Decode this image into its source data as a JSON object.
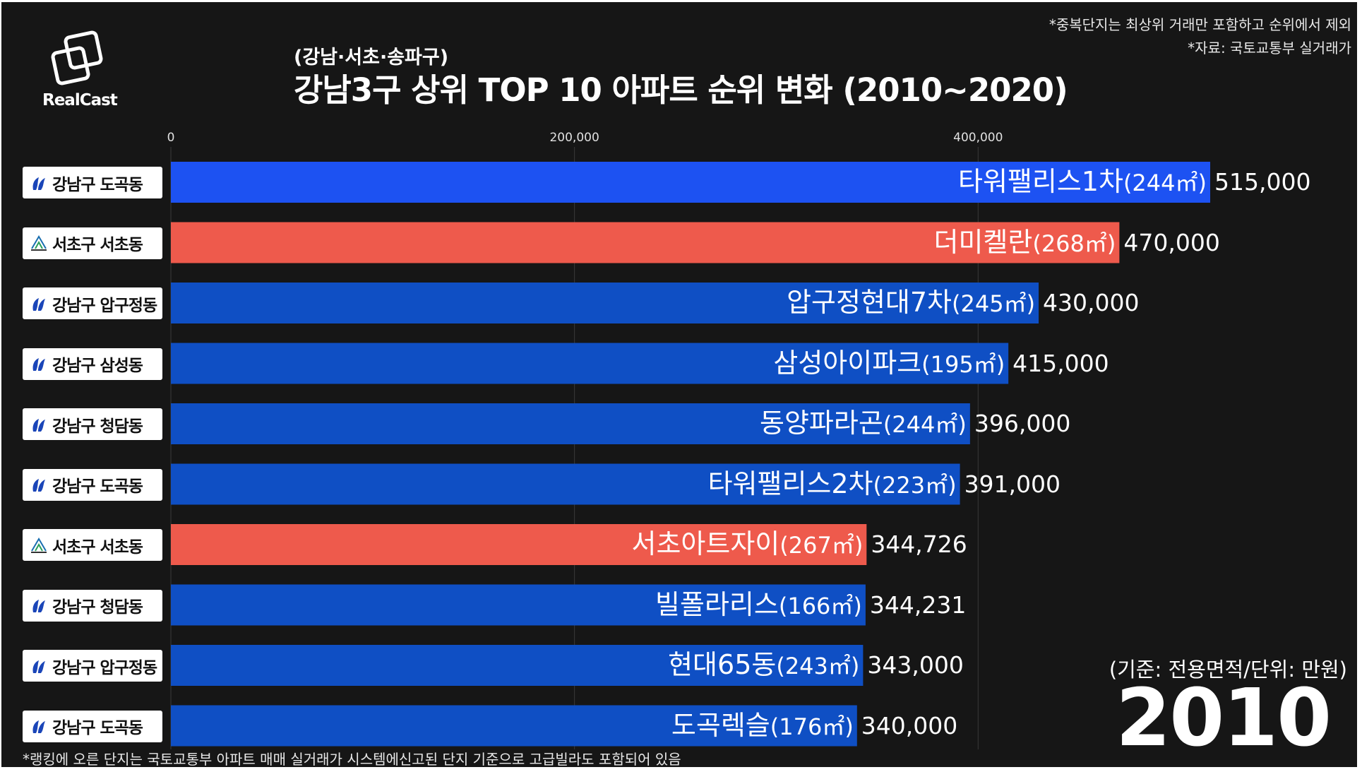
{
  "header": {
    "brand": "RealCast",
    "subtitle": "(강남·서초·송파구)",
    "title": "강남3구 상위 TOP 10 아파트 순위 변화 (2010~2020)",
    "note_duplicate": "*중복단지는 최상위 거래만 포함하고 순위에서 제외",
    "note_source": "*자료: 국토교통부 실거래가"
  },
  "footer": {
    "footnote": "*랭킹에 오른 단지는 국토교통부 아파트 매매 실거래가 시스템에신고된 단지 기준으로 고급빌라도 포함되어 있음",
    "unit_note": "(기준: 전용면적/단위: 만원)",
    "year": "2010"
  },
  "colors": {
    "gangnam_bar": "#0f4fc4",
    "gangnam_top_bar": "#1d52f2",
    "seocho_bar": "#ee5a4c",
    "background": "#161616"
  },
  "chart_data": {
    "type": "bar",
    "orientation": "horizontal",
    "title": "강남3구 상위 TOP 10 아파트 순위 변화 (2010~2020)",
    "xlim": [
      0,
      515000
    ],
    "ticks": [
      {
        "value": 0,
        "label": "0"
      },
      {
        "value": 200000,
        "label": "200,000"
      },
      {
        "value": 400000,
        "label": "400,000"
      }
    ],
    "grid": true,
    "bars": [
      {
        "district": "강남구 도곡동",
        "gu": "gangnam",
        "name": "타워팰리스1차",
        "area": "(244㎡)",
        "value": 515000,
        "value_label": "515,000"
      },
      {
        "district": "서초구 서초동",
        "gu": "seocho",
        "name": "더미켈란",
        "area": "(268㎡)",
        "value": 470000,
        "value_label": "470,000"
      },
      {
        "district": "강남구 압구정동",
        "gu": "gangnam",
        "name": "압구정현대7차",
        "area": "(245㎡)",
        "value": 430000,
        "value_label": "430,000"
      },
      {
        "district": "강남구 삼성동",
        "gu": "gangnam",
        "name": "삼성아이파크",
        "area": "(195㎡)",
        "value": 415000,
        "value_label": "415,000"
      },
      {
        "district": "강남구 청담동",
        "gu": "gangnam",
        "name": "동양파라곤",
        "area": "(244㎡)",
        "value": 396000,
        "value_label": "396,000"
      },
      {
        "district": "강남구 도곡동",
        "gu": "gangnam",
        "name": "타워팰리스2차",
        "area": "(223㎡)",
        "value": 391000,
        "value_label": "391,000"
      },
      {
        "district": "서초구 서초동",
        "gu": "seocho",
        "name": "서초아트자이",
        "area": "(267㎡)",
        "value": 344726,
        "value_label": "344,726"
      },
      {
        "district": "강남구 청담동",
        "gu": "gangnam",
        "name": "빌폴라리스",
        "area": "(166㎡)",
        "value": 344231,
        "value_label": "344,231"
      },
      {
        "district": "강남구 압구정동",
        "gu": "gangnam",
        "name": "현대65동",
        "area": "(243㎡)",
        "value": 343000,
        "value_label": "343,000"
      },
      {
        "district": "강남구 도곡동",
        "gu": "gangnam",
        "name": "도곡렉슬",
        "area": "(176㎡)",
        "value": 340000,
        "value_label": "340,000"
      }
    ]
  }
}
